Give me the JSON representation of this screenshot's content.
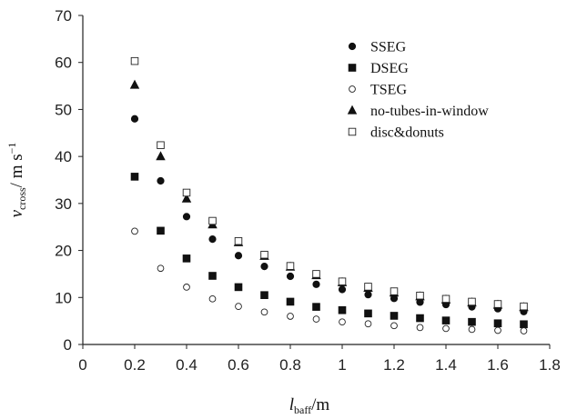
{
  "chart_data": {
    "type": "scatter",
    "x": [
      0.2,
      0.3,
      0.4,
      0.5,
      0.6,
      0.7,
      0.8,
      0.9,
      1.0,
      1.1,
      1.2,
      1.3,
      1.4,
      1.5,
      1.6,
      1.7
    ],
    "xlim": [
      0,
      1.8
    ],
    "ylim": [
      0,
      70
    ],
    "xticks": [
      "0",
      "0.2",
      "0.4",
      "0.6",
      "0.8",
      "1",
      "1.2",
      "1.4",
      "1.6",
      "1.8"
    ],
    "yticks": [
      "0",
      "10",
      "20",
      "30",
      "40",
      "50",
      "60",
      "70"
    ],
    "xlabel": {
      "main": "l",
      "sub": "baff",
      "rest": "/m"
    },
    "ylabel": {
      "main": "v",
      "sub": "cross",
      "rest": "/ m s",
      "sup": "−1"
    },
    "legend_position": "top-right",
    "series": [
      {
        "name": "SSEG",
        "marker": "circle-filled",
        "values": [
          48.0,
          34.8,
          27.2,
          22.4,
          18.9,
          16.6,
          14.5,
          12.8,
          11.7,
          10.6,
          9.8,
          9.0,
          8.5,
          8.0,
          7.6,
          7.0
        ]
      },
      {
        "name": "DSEG",
        "marker": "square-filled",
        "values": [
          35.7,
          24.2,
          18.3,
          14.6,
          12.2,
          10.5,
          9.1,
          8.0,
          7.3,
          6.6,
          6.1,
          5.6,
          5.1,
          4.8,
          4.5,
          4.3
        ]
      },
      {
        "name": "TSEG",
        "marker": "circle-open",
        "values": [
          24.1,
          16.2,
          12.2,
          9.7,
          8.1,
          6.9,
          6.0,
          5.4,
          4.8,
          4.4,
          4.0,
          3.6,
          3.4,
          3.2,
          3.0,
          2.9
        ]
      },
      {
        "name": "no-tubes-in-window",
        "marker": "triangle-filled",
        "values": [
          55.2,
          40.0,
          31.0,
          25.5,
          21.7,
          18.8,
          16.5,
          14.7,
          13.2,
          12.0,
          11.0,
          10.2,
          9.5,
          8.9,
          8.4,
          7.9
        ]
      },
      {
        "name": "disc&donuts",
        "marker": "square-open",
        "values": [
          60.3,
          42.4,
          32.3,
          26.3,
          22.0,
          19.1,
          16.7,
          15.0,
          13.4,
          12.3,
          11.3,
          10.4,
          9.7,
          9.1,
          8.6,
          8.1
        ]
      }
    ]
  }
}
